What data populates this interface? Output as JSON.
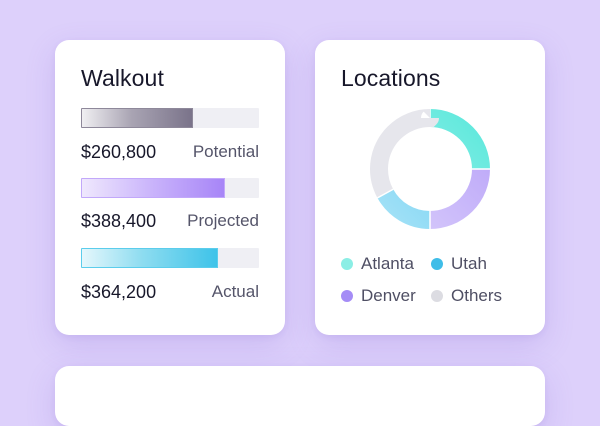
{
  "walkout": {
    "title": "Walkout",
    "rows": [
      {
        "value": "$260,800",
        "label": "Potential",
        "fill": 0.63
      },
      {
        "value": "$388,400",
        "label": "Projected",
        "fill": 0.81
      },
      {
        "value": "$364,200",
        "label": "Actual",
        "fill": 0.77
      }
    ]
  },
  "locations": {
    "title": "Locations",
    "segments": [
      {
        "name": "Atlanta",
        "share": 0.25,
        "color": "#5de8dc"
      },
      {
        "name": "Denver",
        "share": 0.25,
        "color": "#b9a3f8"
      },
      {
        "name": "Utah",
        "share": 0.17,
        "color": "#5ccaf0"
      },
      {
        "name": "Others",
        "share": 0.33,
        "color": "#e6e6ec"
      }
    ],
    "legend": [
      {
        "name": "Atlanta",
        "color": "#8beee5"
      },
      {
        "name": "Utah",
        "color": "#3fbde8"
      },
      {
        "name": "Denver",
        "color": "#a58cf6"
      },
      {
        "name": "Others",
        "color": "#dcdce2"
      }
    ]
  }
}
